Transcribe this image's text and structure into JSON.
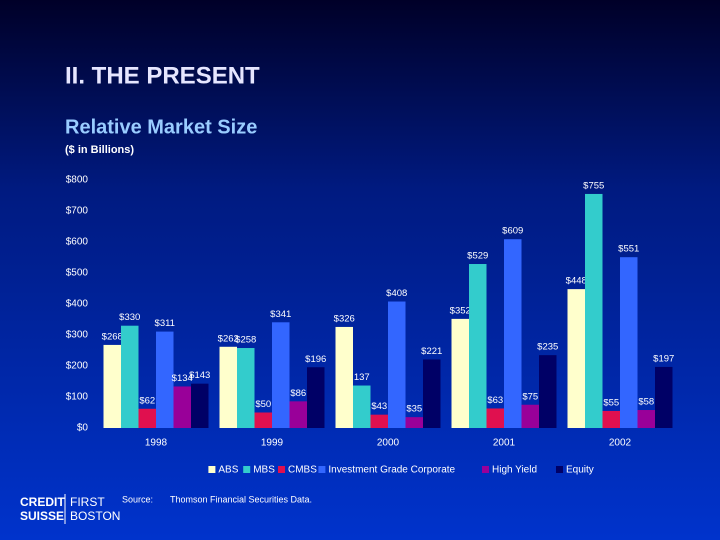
{
  "slide": {
    "heading": "II. THE PRESENT",
    "source_label": "Source:",
    "source": "Thomson Financial Securities Data.",
    "logo": [
      "CREDIT",
      "SUISSE",
      "FIRST",
      "BOSTON"
    ]
  },
  "chart_data": {
    "type": "bar",
    "title": "Relative Market Size",
    "subtitle": "($ in Billions)",
    "categories": [
      "1998",
      "1999",
      "2000",
      "2001",
      "2002"
    ],
    "series": [
      {
        "name": "ABS",
        "color": "#ffffcc",
        "values": [
          268,
          262,
          326,
          352,
          448
        ],
        "value_labels": [
          "$268",
          "$262",
          "$326",
          "$352",
          "$448"
        ]
      },
      {
        "name": "MBS",
        "color": "#33cccc",
        "values": [
          330,
          258,
          137,
          529,
          755
        ],
        "value_labels": [
          "$330",
          "$258",
          "137",
          "$529",
          "$755"
        ]
      },
      {
        "name": "CMBS",
        "color": "#e0104f",
        "values": [
          62,
          50,
          43,
          63,
          55
        ],
        "value_labels": [
          "$62",
          "$50",
          "$43",
          "$63",
          "$55"
        ]
      },
      {
        "name": "Investment Grade Corporate",
        "color": "#3366ff",
        "values": [
          311,
          341,
          408,
          609,
          551
        ],
        "value_labels": [
          "$311",
          "$341",
          "$408",
          "$609",
          "$551"
        ]
      },
      {
        "name": "High Yield",
        "color": "#990099",
        "values": [
          134,
          86,
          35,
          75,
          58
        ],
        "value_labels": [
          "$134",
          "$86",
          "$35",
          "$75",
          "$58"
        ]
      },
      {
        "name": "Equity",
        "color": "#000066",
        "values": [
          143,
          196,
          221,
          235,
          197
        ],
        "value_labels": [
          "$143",
          "$196",
          "$221",
          "$235",
          "$197"
        ]
      }
    ],
    "ylim": [
      0,
      800
    ],
    "yticks": [
      {
        "value": 0,
        "label": "$0"
      },
      {
        "value": 100,
        "label": "$100"
      },
      {
        "value": 200,
        "label": "$200"
      },
      {
        "value": 300,
        "label": "$300"
      },
      {
        "value": 400,
        "label": "$400"
      },
      {
        "value": 500,
        "label": "$500"
      },
      {
        "value": 600,
        "label": "$600"
      },
      {
        "value": 700,
        "label": "$700"
      },
      {
        "value": 800,
        "label": "$800"
      }
    ],
    "grid": false,
    "legend": "bottom"
  }
}
